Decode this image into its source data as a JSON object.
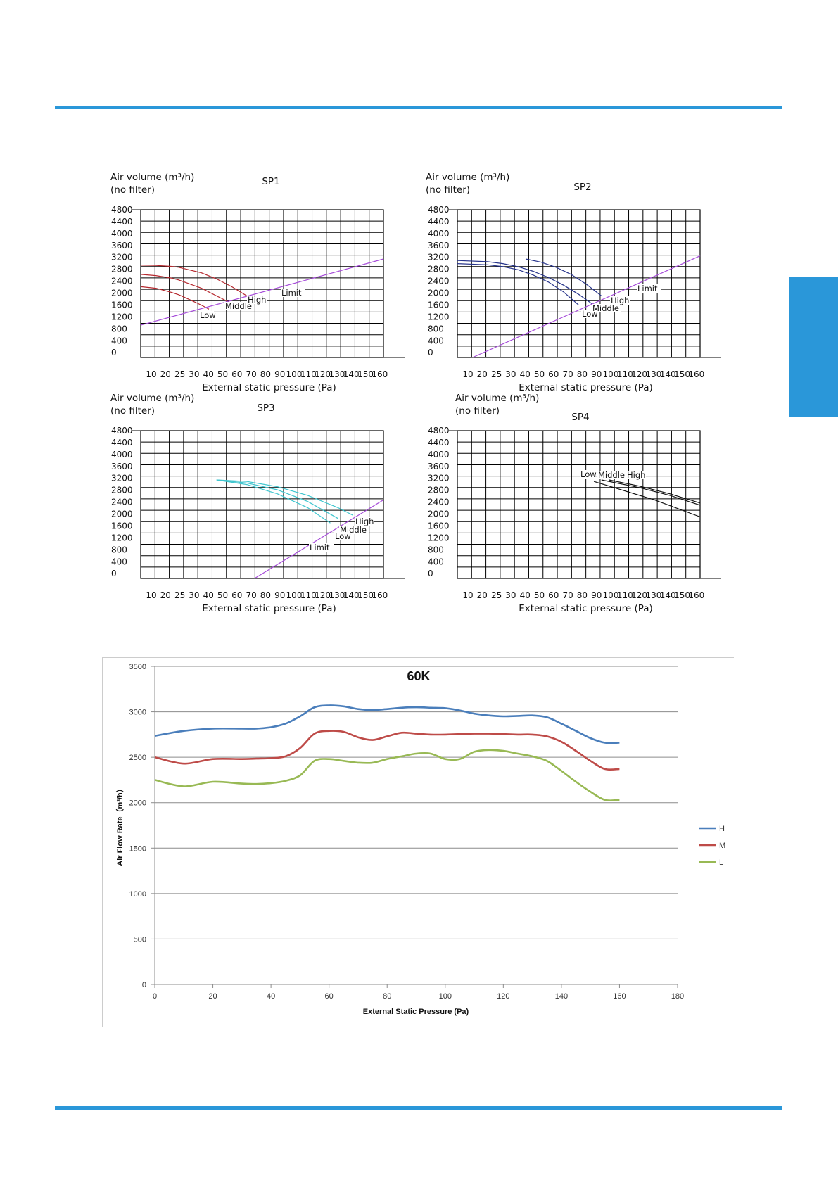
{
  "page": {
    "accent_color": "#2a97d9"
  },
  "chart_data": [
    {
      "type": "line",
      "title": "SP1",
      "ylabel": "Air volume (m³/h)",
      "ylabel2": "(no filter)",
      "xlabel": "External static pressure (Pa)",
      "x_ticks": [
        "10",
        "20",
        "25",
        "30",
        "40",
        "50",
        "60",
        "70",
        "80",
        "90",
        "100",
        "110",
        "120",
        "130",
        "140",
        "150",
        "160"
      ],
      "y_ticks": [
        "4800",
        "4400",
        "4000",
        "3600",
        "3200",
        "2800",
        "2400",
        "2000",
        "1600",
        "1200",
        "800",
        "400",
        "0"
      ],
      "ylim": [
        0,
        4800
      ],
      "grid": true,
      "annotations": [
        "Low",
        "Middle",
        "High",
        "Limit"
      ],
      "series": [
        {
          "label": "High",
          "color": "#b5282e",
          "x": [
            0,
            10,
            20,
            25,
            30,
            40,
            50,
            60,
            70
          ],
          "y": [
            3000,
            2990,
            2960,
            2930,
            2870,
            2750,
            2550,
            2300,
            2000
          ]
        },
        {
          "label": "Middle",
          "color": "#b5282e",
          "x": [
            0,
            10,
            20,
            25,
            30,
            40,
            50,
            60
          ],
          "y": [
            2700,
            2660,
            2580,
            2520,
            2430,
            2250,
            2000,
            1750
          ]
        },
        {
          "label": "Low",
          "color": "#b5282e",
          "x": [
            0,
            10,
            20,
            25,
            30,
            40,
            45
          ],
          "y": [
            2300,
            2250,
            2120,
            2040,
            1930,
            1700,
            1570
          ]
        },
        {
          "label": "Limit",
          "color": "#a64bd9",
          "x": [
            0,
            160
          ],
          "y": [
            1050,
            3200
          ]
        }
      ]
    },
    {
      "type": "line",
      "title": "SP2",
      "ylabel": "Air volume (m³/h)",
      "ylabel2": "(no filter)",
      "xlabel": "External static pressure (Pa)",
      "x_ticks": [
        "10",
        "20",
        "25",
        "30",
        "40",
        "50",
        "60",
        "70",
        "80",
        "90",
        "100",
        "110",
        "120",
        "130",
        "140",
        "150",
        "160"
      ],
      "y_ticks": [
        "4800",
        "4400",
        "4000",
        "3600",
        "3200",
        "2800",
        "2400",
        "2000",
        "1600",
        "1200",
        "800",
        "400",
        "0"
      ],
      "ylim": [
        0,
        4800
      ],
      "grid": true,
      "annotations": [
        "Low",
        "Middle",
        "High",
        "Limit"
      ],
      "series": [
        {
          "label": "High",
          "color": "#27348b",
          "x": [
            45,
            55,
            65,
            75,
            85,
            95
          ],
          "y": [
            3200,
            3100,
            2930,
            2700,
            2380,
            2000
          ]
        },
        {
          "label": "Middle",
          "color": "#27348b",
          "x": [
            0,
            20,
            30,
            40,
            50,
            60,
            70,
            80,
            90
          ],
          "y": [
            3150,
            3110,
            3050,
            2950,
            2800,
            2600,
            2350,
            2050,
            1700
          ]
        },
        {
          "label": "Low",
          "color": "#27348b",
          "x": [
            0,
            20,
            30,
            40,
            50,
            60,
            70,
            80
          ],
          "y": [
            3050,
            3010,
            2950,
            2850,
            2680,
            2450,
            2130,
            1700
          ]
        },
        {
          "label": "Limit",
          "color": "#a64bd9",
          "x": [
            10,
            160
          ],
          "y": [
            0,
            3300
          ]
        }
      ]
    },
    {
      "type": "line",
      "title": "SP3",
      "ylabel": "Air volume (m³/h)",
      "ylabel2": "(no filter)",
      "xlabel": "External static pressure (Pa)",
      "x_ticks": [
        "10",
        "20",
        "25",
        "30",
        "40",
        "50",
        "60",
        "70",
        "80",
        "90",
        "100",
        "110",
        "120",
        "130",
        "140",
        "150",
        "160"
      ],
      "y_ticks": [
        "4800",
        "4400",
        "4000",
        "3600",
        "3200",
        "2800",
        "2400",
        "2000",
        "1600",
        "1200",
        "800",
        "400",
        "0"
      ],
      "ylim": [
        0,
        4800
      ],
      "grid": true,
      "annotations": [
        "High",
        "Middle",
        "Low",
        "Limit"
      ],
      "series": [
        {
          "label": "High",
          "color": "#3fc6cf",
          "x": [
            50,
            70,
            90,
            110,
            130,
            140
          ],
          "y": [
            3200,
            3150,
            2980,
            2700,
            2300,
            2050
          ]
        },
        {
          "label": "Middle",
          "color": "#3fc6cf",
          "x": [
            50,
            70,
            90,
            110,
            130
          ],
          "y": [
            3200,
            3100,
            2880,
            2500,
            1950
          ]
        },
        {
          "label": "Low",
          "color": "#3fc6cf",
          "x": [
            50,
            70,
            90,
            110,
            125
          ],
          "y": [
            3200,
            3050,
            2750,
            2300,
            1800
          ]
        },
        {
          "label": "Limit",
          "color": "#a64bd9",
          "x": [
            75,
            160
          ],
          "y": [
            0,
            2550
          ]
        }
      ]
    },
    {
      "type": "line",
      "title": "SP4",
      "ylabel": "Air volume (m³/h)",
      "ylabel2": "(no filter)",
      "xlabel": "External static pressure (Pa)",
      "x_ticks": [
        "10",
        "20",
        "25",
        "30",
        "40",
        "50",
        "60",
        "70",
        "80",
        "90",
        "100",
        "110",
        "120",
        "130",
        "140",
        "150",
        "160"
      ],
      "y_ticks": [
        "4800",
        "4400",
        "4000",
        "3600",
        "3200",
        "2800",
        "2400",
        "2000",
        "1600",
        "1200",
        "800",
        "400",
        "0"
      ],
      "ylim": [
        0,
        4800
      ],
      "grid": true,
      "annotations": [
        "Low",
        "Middle",
        "High"
      ],
      "series": [
        {
          "label": "High",
          "color": "#111111",
          "x": [
            100,
            120,
            140,
            160
          ],
          "y": [
            3200,
            3000,
            2750,
            2450
          ]
        },
        {
          "label": "Middle",
          "color": "#111111",
          "x": [
            95,
            120,
            140,
            160
          ],
          "y": [
            3200,
            2950,
            2700,
            2380
          ]
        },
        {
          "label": "Low",
          "color": "#111111",
          "x": [
            90,
            110,
            130,
            160
          ],
          "y": [
            3150,
            2850,
            2550,
            2000
          ]
        }
      ]
    },
    {
      "type": "line",
      "title": "60K",
      "xlabel": "External Static Pressure (Pa)",
      "ylabel": "Air Flow Rate（m³/h）",
      "x": [
        0,
        10,
        20,
        30,
        35,
        40,
        45,
        50,
        55,
        60,
        65,
        70,
        75,
        80,
        85,
        90,
        95,
        100,
        105,
        110,
        115,
        120,
        125,
        130,
        135,
        140,
        145,
        150,
        155,
        160
      ],
      "xlim": [
        0,
        180
      ],
      "ylim": [
        0,
        3500
      ],
      "x_ticks": [
        "0",
        "20",
        "40",
        "60",
        "80",
        "100",
        "120",
        "140",
        "160",
        "180"
      ],
      "y_ticks": [
        "0",
        "500",
        "1000",
        "1500",
        "2000",
        "2500",
        "3000",
        "3500"
      ],
      "grid": true,
      "legend": "right",
      "series": [
        {
          "name": "H",
          "color": "#4a7ebb",
          "values": [
            2735,
            2790,
            2815,
            2815,
            2815,
            2830,
            2870,
            2950,
            3050,
            3070,
            3060,
            3030,
            3020,
            3030,
            3045,
            3050,
            3045,
            3040,
            3015,
            2980,
            2960,
            2950,
            2955,
            2960,
            2940,
            2870,
            2790,
            2710,
            2660,
            2660
          ]
        },
        {
          "name": "M",
          "color": "#be4b48",
          "values": [
            2500,
            2430,
            2480,
            2480,
            2485,
            2490,
            2510,
            2600,
            2760,
            2790,
            2780,
            2720,
            2690,
            2730,
            2770,
            2760,
            2750,
            2750,
            2755,
            2760,
            2760,
            2755,
            2750,
            2750,
            2730,
            2670,
            2570,
            2460,
            2370,
            2370
          ]
        },
        {
          "name": "L",
          "color": "#98b954",
          "values": [
            2250,
            2180,
            2230,
            2210,
            2205,
            2215,
            2240,
            2300,
            2460,
            2480,
            2460,
            2440,
            2440,
            2480,
            2510,
            2540,
            2540,
            2480,
            2480,
            2560,
            2580,
            2570,
            2540,
            2510,
            2460,
            2350,
            2230,
            2120,
            2030,
            2030
          ]
        }
      ]
    }
  ]
}
